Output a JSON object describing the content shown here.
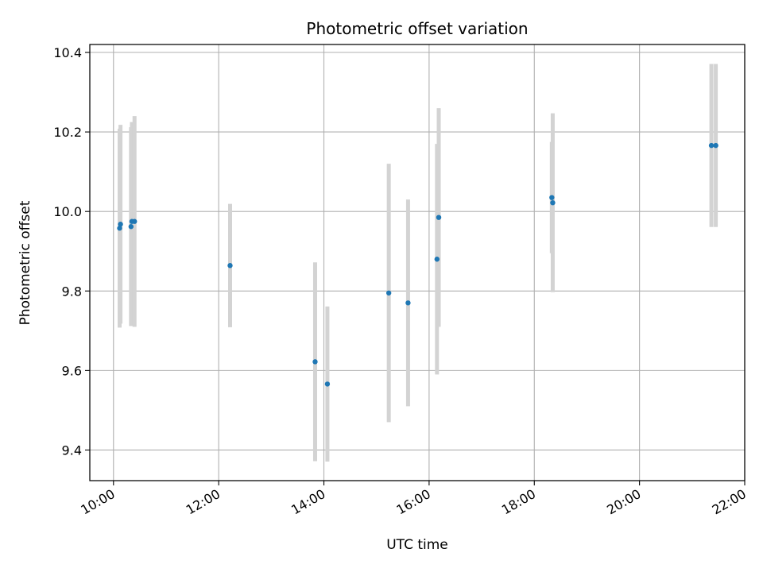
{
  "chart_data": {
    "type": "scatter",
    "title": "Photometric offset variation",
    "xlabel": "UTC time",
    "ylabel": "Photometric offset",
    "x_ticks": [
      "10:00",
      "12:00",
      "14:00",
      "16:00",
      "18:00",
      "20:00",
      "22:00"
    ],
    "y_ticks": [
      "9.4",
      "9.6",
      "9.8",
      "10.0",
      "10.2",
      "10.4"
    ],
    "xlim": [
      "09:33",
      "22:00"
    ],
    "ylim": [
      9.323,
      10.42
    ],
    "grid": true,
    "colors": {
      "marker": "#1f77b4",
      "errorbar": "#d3d3d3",
      "grid": "#b0b0b0"
    },
    "points": [
      {
        "x": "10:07",
        "y": 9.958,
        "yerr": 0.25
      },
      {
        "x": "10:08",
        "y": 9.968,
        "yerr": 0.25
      },
      {
        "x": "10:20",
        "y": 9.962,
        "yerr": 0.25
      },
      {
        "x": "10:21",
        "y": 9.975,
        "yerr": 0.25
      },
      {
        "x": "10:24",
        "y": 9.975,
        "yerr": 0.265
      },
      {
        "x": "12:13",
        "y": 9.864,
        "yerr": 0.155
      },
      {
        "x": "13:50",
        "y": 9.622,
        "yerr": 0.25
      },
      {
        "x": "14:04",
        "y": 9.566,
        "yerr": 0.195
      },
      {
        "x": "15:14",
        "y": 9.795,
        "yerr": 0.325
      },
      {
        "x": "15:36",
        "y": 9.77,
        "yerr": 0.26
      },
      {
        "x": "16:09",
        "y": 9.88,
        "yerr": 0.29
      },
      {
        "x": "16:11",
        "y": 9.985,
        "yerr": 0.275
      },
      {
        "x": "18:20",
        "y": 10.035,
        "yerr": 0.14
      },
      {
        "x": "18:21",
        "y": 10.022,
        "yerr": 0.225
      },
      {
        "x": "21:22",
        "y": 10.166,
        "yerr": 0.205
      },
      {
        "x": "21:27",
        "y": 10.166,
        "yerr": 0.205
      }
    ]
  }
}
